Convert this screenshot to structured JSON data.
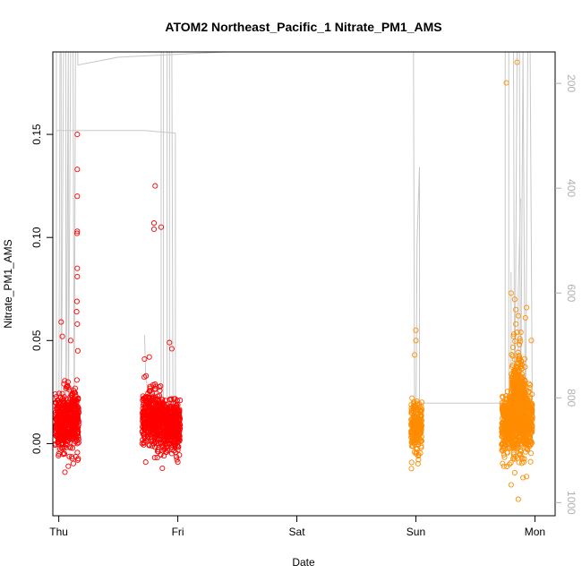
{
  "chart_data": {
    "type": "scatter",
    "title": "ATOM2 Northeast_Pacific_1 Nitrate_PM1_AMS",
    "xlabel": "Date",
    "ylabel": "Nitrate_PM1_AMS",
    "x_ticks": [
      "Thu",
      "Fri",
      "Sat",
      "Sun",
      "Mon"
    ],
    "x_range_days": [
      -0.05,
      4.17
    ],
    "ylim": [
      -0.035,
      0.19
    ],
    "y_ticks": [
      0.0,
      0.05,
      0.1,
      0.15
    ],
    "y_tick_labels": [
      "0.00",
      "0.05",
      "0.10",
      "0.15"
    ],
    "y2_ticks": [
      200,
      400,
      600,
      800,
      1000
    ],
    "y2_range": [
      140,
      1025
    ],
    "y2_reversed": true,
    "grid": false,
    "legend": "none",
    "series": [
      {
        "color": "#ff0000",
        "marker": "open-circle",
        "clusters": [
          {
            "x_start": -0.03,
            "x_end": 0.05,
            "y_center": 0.01,
            "y_spread": 0.012
          },
          {
            "x_start": 0.05,
            "x_end": 0.17,
            "y_center": 0.011,
            "y_spread": 0.013
          },
          {
            "x_start": 0.7,
            "x_end": 0.88,
            "y_center": 0.012,
            "y_spread": 0.012
          },
          {
            "x_start": 0.88,
            "x_end": 1.02,
            "y_center": 0.008,
            "y_spread": 0.011
          }
        ],
        "outliers": [
          {
            "x": 0.155,
            "y": 0.15
          },
          {
            "x": 0.155,
            "y": 0.133
          },
          {
            "x": 0.155,
            "y": 0.12
          },
          {
            "x": 0.155,
            "y": 0.103
          },
          {
            "x": 0.153,
            "y": 0.102
          },
          {
            "x": 0.155,
            "y": 0.085
          },
          {
            "x": 0.155,
            "y": 0.081
          },
          {
            "x": 0.152,
            "y": 0.069
          },
          {
            "x": 0.15,
            "y": 0.064
          },
          {
            "x": 0.155,
            "y": 0.058
          },
          {
            "x": 0.02,
            "y": 0.059
          },
          {
            "x": 0.03,
            "y": 0.052
          },
          {
            "x": 0.1,
            "y": 0.05
          },
          {
            "x": 0.16,
            "y": 0.045
          },
          {
            "x": 0.08,
            "y": -0.011
          },
          {
            "x": 0.16,
            "y": -0.008
          },
          {
            "x": 0.0,
            "y": -0.005
          },
          {
            "x": 0.81,
            "y": 0.125
          },
          {
            "x": 0.8,
            "y": 0.107
          },
          {
            "x": 0.8,
            "y": 0.104
          },
          {
            "x": 0.86,
            "y": 0.105
          },
          {
            "x": 0.93,
            "y": 0.049
          },
          {
            "x": 0.95,
            "y": 0.046
          },
          {
            "x": 0.72,
            "y": 0.041
          },
          {
            "x": 0.76,
            "y": 0.042
          },
          {
            "x": 0.87,
            "y": -0.012
          },
          {
            "x": 0.73,
            "y": -0.009
          },
          {
            "x": 1.0,
            "y": -0.009
          }
        ]
      },
      {
        "color": "#ff8c00",
        "marker": "open-circle",
        "clusters": [
          {
            "x_start": 2.96,
            "x_end": 3.05,
            "y_center": 0.008,
            "y_spread": 0.011
          },
          {
            "x_start": 3.72,
            "x_end": 3.98,
            "y_center": 0.009,
            "y_spread": 0.014
          },
          {
            "x_start": 3.8,
            "x_end": 3.92,
            "y_center": 0.026,
            "y_spread": 0.018
          }
        ],
        "outliers": [
          {
            "x": 3.0,
            "y": 0.055
          },
          {
            "x": 3.0,
            "y": 0.05
          },
          {
            "x": 2.99,
            "y": 0.043
          },
          {
            "x": 3.02,
            "y": -0.006
          },
          {
            "x": 3.76,
            "y": 0.175
          },
          {
            "x": 3.85,
            "y": 0.185
          },
          {
            "x": 3.8,
            "y": 0.073
          },
          {
            "x": 3.83,
            "y": 0.07
          },
          {
            "x": 3.84,
            "y": 0.065
          },
          {
            "x": 3.86,
            "y": 0.062
          },
          {
            "x": 3.84,
            "y": 0.058
          },
          {
            "x": 3.85,
            "y": 0.054
          },
          {
            "x": 3.93,
            "y": 0.066
          },
          {
            "x": 3.92,
            "y": 0.061
          },
          {
            "x": 3.82,
            "y": 0.052
          },
          {
            "x": 3.87,
            "y": 0.048
          },
          {
            "x": 3.97,
            "y": 0.05
          },
          {
            "x": 3.86,
            "y": -0.027
          },
          {
            "x": 3.8,
            "y": -0.02
          },
          {
            "x": 3.93,
            "y": -0.016
          },
          {
            "x": 3.74,
            "y": -0.011
          }
        ]
      }
    ],
    "altitude_track": {
      "color": "#c8c8c8",
      "points": [
        [
          -0.02,
          140
        ],
        [
          -0.02,
          900
        ],
        [
          0.0,
          910
        ],
        [
          0.01,
          140
        ],
        [
          0.02,
          140
        ],
        [
          0.02,
          880
        ],
        [
          0.04,
          140
        ],
        [
          0.06,
          140
        ],
        [
          0.06,
          880
        ],
        [
          0.08,
          140
        ],
        [
          0.08,
          880
        ],
        [
          0.1,
          140
        ],
        [
          0.12,
          140
        ],
        [
          0.13,
          860
        ],
        [
          0.14,
          140
        ],
        [
          0.15,
          140
        ],
        [
          0.16,
          140
        ],
        [
          0.16,
          165
        ],
        [
          0.5,
          150
        ],
        [
          1.4,
          140
        ],
        [
          3.0,
          140
        ],
        [
          3.75,
          140
        ],
        [
          3.75,
          900
        ],
        [
          3.78,
          880
        ],
        [
          3.78,
          140
        ],
        [
          3.82,
          140
        ],
        [
          3.83,
          880
        ],
        [
          3.85,
          140
        ],
        [
          3.87,
          140
        ],
        [
          3.88,
          880
        ],
        [
          3.9,
          140
        ],
        [
          3.92,
          900
        ],
        [
          3.94,
          140
        ],
        [
          3.96,
          140
        ],
        [
          3.98,
          880
        ]
      ],
      "extra_paths": [
        [
          [
            -0.02,
            290
          ],
          [
            0.72,
            290
          ],
          [
            0.98,
            295
          ],
          [
            0.98,
            880
          ]
        ],
        [
          [
            0.72,
            680
          ],
          [
            0.73,
            760
          ],
          [
            0.76,
            800
          ],
          [
            0.8,
            800
          ],
          [
            0.8,
            780
          ],
          [
            0.82,
            780
          ],
          [
            0.84,
            820
          ]
        ],
        [
          [
            0.86,
            140
          ],
          [
            0.86,
            880
          ],
          [
            0.88,
            880
          ],
          [
            0.88,
            140
          ],
          [
            0.91,
            140
          ],
          [
            0.91,
            880
          ],
          [
            0.93,
            880
          ],
          [
            0.93,
            140
          ],
          [
            0.95,
            140
          ],
          [
            0.96,
            880
          ]
        ],
        [
          [
            2.96,
            140
          ],
          [
            2.98,
            140
          ],
          [
            2.99,
            880
          ],
          [
            3.0,
            880
          ],
          [
            3.01,
            500
          ],
          [
            3.03,
            360
          ],
          [
            3.03,
            880
          ],
          [
            3.05,
            880
          ]
        ],
        [
          [
            3.03,
            810
          ],
          [
            3.72,
            810
          ],
          [
            3.78,
            820
          ]
        ],
        [
          [
            3.8,
            560
          ],
          [
            3.8,
            740
          ],
          [
            3.84,
            740
          ],
          [
            3.86,
            720
          ],
          [
            3.86,
            600
          ],
          [
            3.88,
            420
          ]
        ]
      ]
    }
  }
}
